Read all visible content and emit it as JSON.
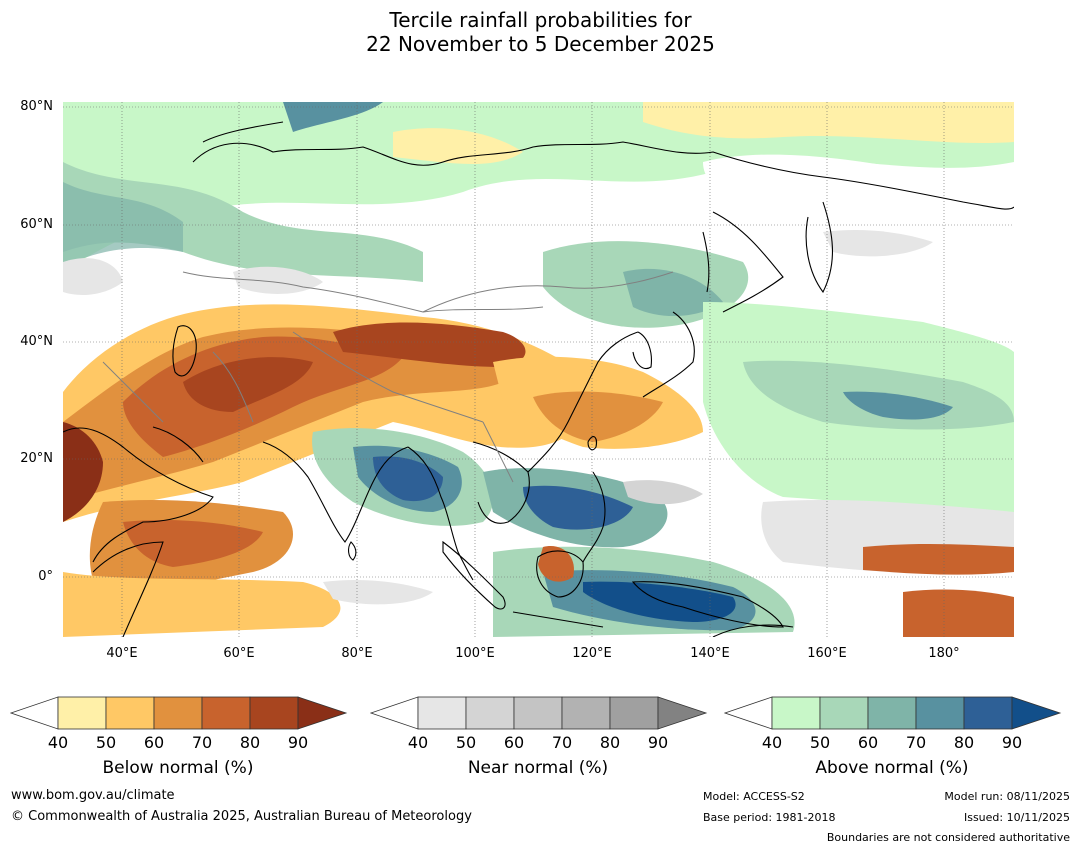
{
  "title": {
    "line1": "Tercile rainfall probabilities for",
    "line2": "22 November to 5 December 2025"
  },
  "axes": {
    "lat_labels": [
      "80°N",
      "60°N",
      "40°N",
      "20°N",
      "0°"
    ],
    "lon_labels": [
      "40°E",
      "60°E",
      "80°E",
      "100°E",
      "120°E",
      "140°E",
      "160°E",
      "180°"
    ]
  },
  "colorbars": [
    {
      "name": "below",
      "label": "Below normal (%)",
      "ticks": [
        "40",
        "50",
        "60",
        "70",
        "80",
        "90"
      ],
      "colors": [
        "#fff0a8",
        "#ffc865",
        "#e1913e",
        "#c8632d",
        "#a8451f",
        "#8a2f17"
      ]
    },
    {
      "name": "near",
      "label": "Near normal (%)",
      "ticks": [
        "40",
        "50",
        "60",
        "70",
        "80",
        "90"
      ],
      "colors": [
        "#e6e6e6",
        "#d4d4d4",
        "#c4c4c4",
        "#b2b2b2",
        "#a0a0a0",
        "#828282"
      ]
    },
    {
      "name": "above",
      "label": "Above normal (%)",
      "ticks": [
        "40",
        "50",
        "60",
        "70",
        "80",
        "90"
      ],
      "colors": [
        "#c8f7c8",
        "#a8d7b8",
        "#7fb4a8",
        "#5891a0",
        "#2e6096",
        "#124f8a"
      ]
    }
  ],
  "footer": {
    "website": "www.bom.gov.au/climate",
    "copyright": "© Commonwealth of Australia 2025, Australian Bureau of Meteorology",
    "model": "Model: ACCESS-S2",
    "base_period": "Base period: 1981-2018",
    "model_run": "Model run: 08/11/2025",
    "issued": "Issued: 10/11/2025",
    "disclaimer": "Boundaries are not considered authoritative"
  }
}
